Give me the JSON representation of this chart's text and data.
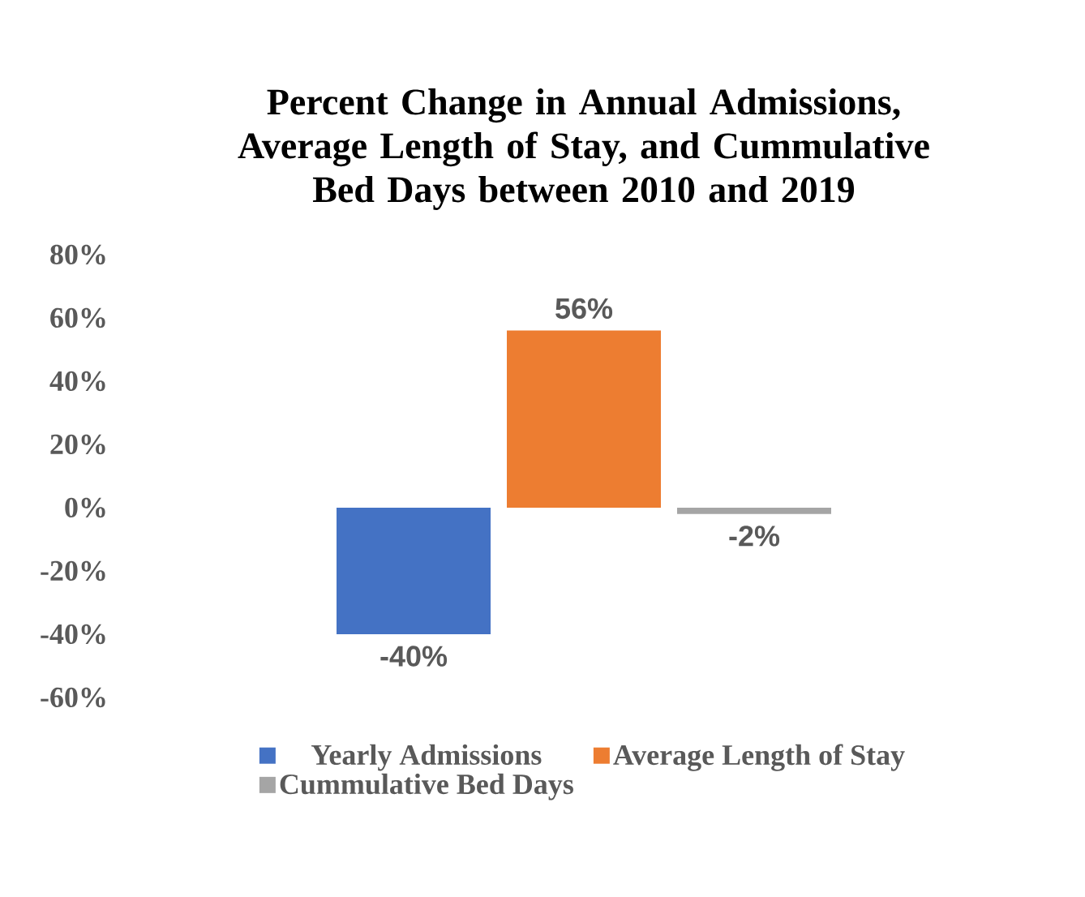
{
  "chart_data": {
    "type": "bar",
    "title": "Percent Change in Annual Admissions, Average Length of Stay, and Cummulative Bed Days between 2010 and 2019",
    "categories": [
      null
    ],
    "series": [
      {
        "name": "Yearly Admissions",
        "color": "#4472c4",
        "values": [
          -40
        ],
        "value_labels": [
          "-40%"
        ]
      },
      {
        "name": "Average Length of Stay",
        "color": "#ed7d31",
        "values": [
          56
        ],
        "value_labels": [
          "56%"
        ]
      },
      {
        "name": "Cummulative Bed Days",
        "color": "#a5a5a5",
        "values": [
          -2
        ],
        "value_labels": [
          "-2%"
        ]
      }
    ],
    "ylim": [
      -60,
      80
    ],
    "yticks": [
      {
        "value": -60,
        "label": "-60%"
      },
      {
        "value": -40,
        "label": "-40%"
      },
      {
        "value": -20,
        "label": "-20%"
      },
      {
        "value": 0,
        "label": "0%"
      },
      {
        "value": 20,
        "label": "20%"
      },
      {
        "value": 40,
        "label": "40%"
      },
      {
        "value": 60,
        "label": "60%"
      },
      {
        "value": 80,
        "label": "80%"
      }
    ],
    "legend": "bottom"
  }
}
